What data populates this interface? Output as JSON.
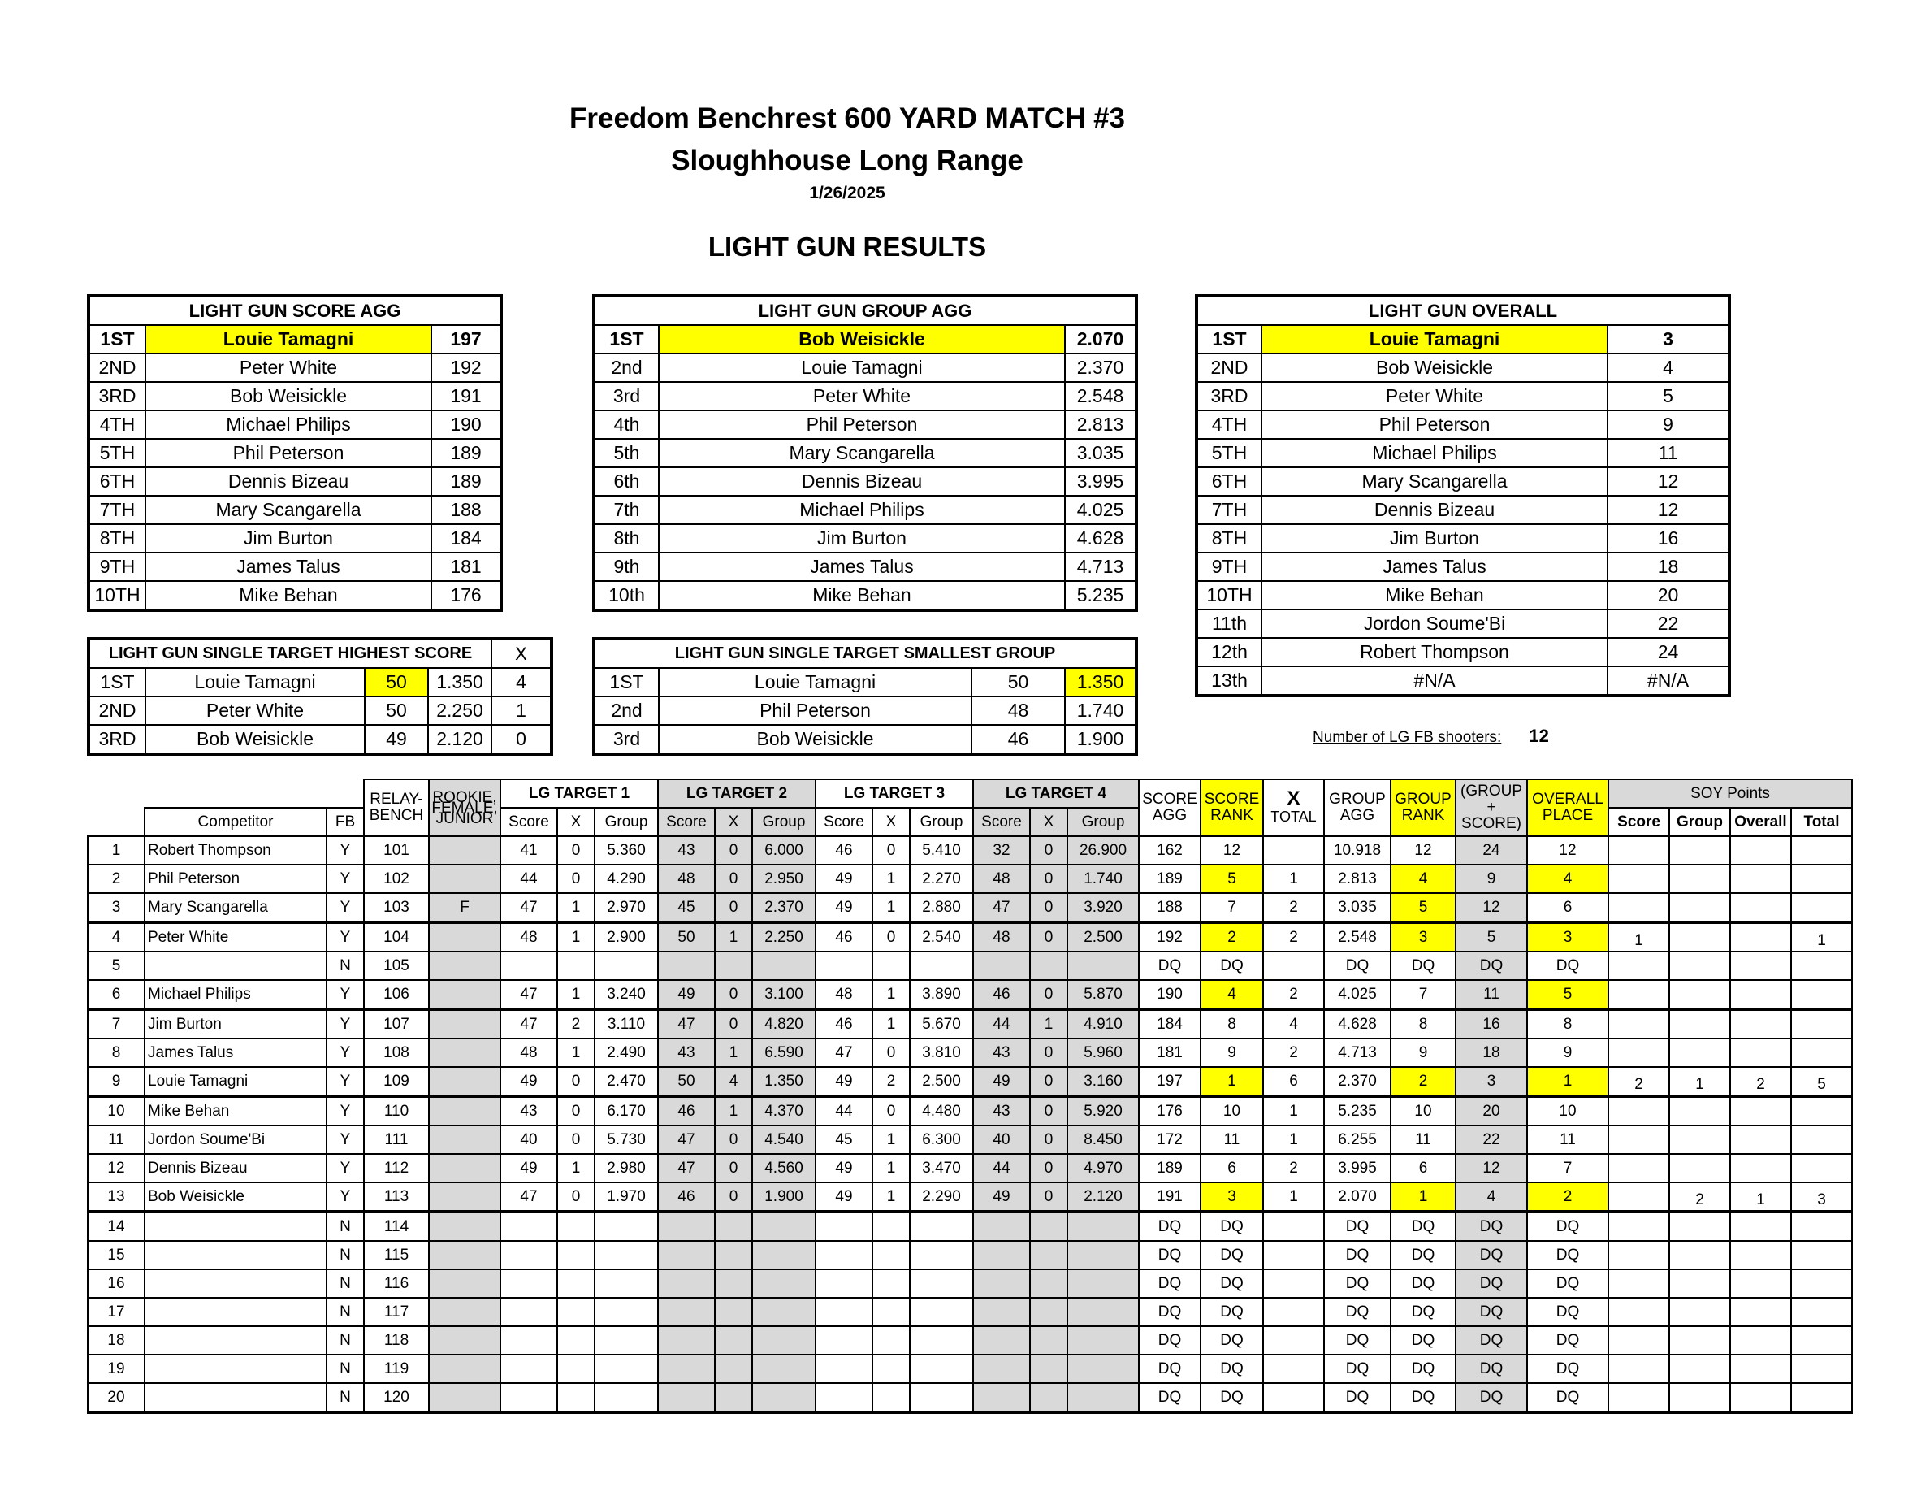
{
  "header": {
    "title": "Freedom Benchrest 600 YARD MATCH #3",
    "venue": "Sloughhouse Long Range",
    "date": "1/26/2025",
    "section": "LIGHT GUN RESULTS"
  },
  "score_agg": {
    "title": "LIGHT GUN SCORE AGG",
    "rows": [
      [
        "1ST",
        "Louie Tamagni",
        "197"
      ],
      [
        "2ND",
        "Peter White",
        "192"
      ],
      [
        "3RD",
        "Bob Weisickle",
        "191"
      ],
      [
        "4TH",
        "Michael Philips",
        "190"
      ],
      [
        "5TH",
        "Phil Peterson",
        "189"
      ],
      [
        "6TH",
        "Dennis Bizeau",
        "189"
      ],
      [
        "7TH",
        "Mary Scangarella",
        "188"
      ],
      [
        "8TH",
        "Jim Burton",
        "184"
      ],
      [
        "9TH",
        "James Talus",
        "181"
      ],
      [
        "10TH",
        "Mike Behan",
        "176"
      ]
    ]
  },
  "group_agg": {
    "title": "LIGHT GUN GROUP AGG",
    "rows": [
      [
        "1ST",
        "Bob Weisickle",
        "2.070"
      ],
      [
        "2nd",
        "Louie Tamagni",
        "2.370"
      ],
      [
        "3rd",
        "Peter White",
        "2.548"
      ],
      [
        "4th",
        "Phil Peterson",
        "2.813"
      ],
      [
        "5th",
        "Mary Scangarella",
        "3.035"
      ],
      [
        "6th",
        "Dennis Bizeau",
        "3.995"
      ],
      [
        "7th",
        "Michael Philips",
        "4.025"
      ],
      [
        "8th",
        "Jim Burton",
        "4.628"
      ],
      [
        "9th",
        "James Talus",
        "4.713"
      ],
      [
        "10th",
        "Mike Behan",
        "5.235"
      ]
    ]
  },
  "overall": {
    "title": "LIGHT GUN OVERALL",
    "rows": [
      [
        "1ST",
        "Louie Tamagni",
        "3"
      ],
      [
        "2ND",
        "Bob Weisickle",
        "4"
      ],
      [
        "3RD",
        "Peter White",
        "5"
      ],
      [
        "4TH",
        "Phil Peterson",
        "9"
      ],
      [
        "5TH",
        "Michael Philips",
        "11"
      ],
      [
        "6TH",
        "Mary Scangarella",
        "12"
      ],
      [
        "7TH",
        "Dennis Bizeau",
        "12"
      ],
      [
        "8TH",
        "Jim Burton",
        "16"
      ],
      [
        "9TH",
        "James Talus",
        "18"
      ],
      [
        "10TH",
        "Mike Behan",
        "20"
      ],
      [
        "11th",
        "Jordon Soume'Bi",
        "22"
      ],
      [
        "12th",
        "Robert Thompson",
        "24"
      ],
      [
        "13th",
        "#N/A",
        "#N/A"
      ]
    ]
  },
  "single_high": {
    "title": "LIGHT GUN SINGLE TARGET HIGHEST SCORE",
    "x_label": "X",
    "rows": [
      [
        "1ST",
        "Louie Tamagni",
        "50",
        "1.350",
        "4"
      ],
      [
        "2ND",
        "Peter White",
        "50",
        "2.250",
        "1"
      ],
      [
        "3RD",
        "Bob Weisickle",
        "49",
        "2.120",
        "0"
      ]
    ]
  },
  "single_small": {
    "title": "LIGHT GUN SINGLE TARGET SMALLEST GROUP",
    "rows": [
      [
        "1ST",
        "Louie Tamagni",
        "50",
        "1.350"
      ],
      [
        "2nd",
        "Phil Peterson",
        "48",
        "1.740"
      ],
      [
        "3rd",
        "Bob Weisickle",
        "46",
        "1.900"
      ]
    ]
  },
  "shooters": {
    "label": "Number of LG FB shooters:",
    "count": "12"
  },
  "main": {
    "headers": {
      "competitor": "Competitor",
      "fb": "FB",
      "relay": "RELAY-\nBENCH",
      "rookie": "ROOKIE,\nFEMALE,\nJUNIOR",
      "t1": "LG TARGET 1",
      "t2": "LG TARGET 2",
      "t3": "LG TARGET 3",
      "t4": "LG TARGET 4",
      "score": "Score",
      "x": "X",
      "group": "Group",
      "score_agg": "SCORE\nAGG",
      "score_rank": "SCORE\nRANK",
      "x_total_x": "X",
      "x_total": "TOTAL",
      "group_agg": "GROUP\nAGG",
      "group_rank": "GROUP\nRANK",
      "group_score": "(GROUP +\nSCORE)",
      "overall_place": "OVERALL\nPLACE",
      "soy": "SOY Points",
      "soy_score": "Score",
      "soy_group": "Group",
      "soy_overall": "Overall",
      "soy_total": "Total"
    },
    "rows": [
      [
        "1",
        "Robert Thompson",
        "Y",
        "101",
        "",
        "41",
        "0",
        "5.360",
        "43",
        "0",
        "6.000",
        "46",
        "0",
        "5.410",
        "32",
        "0",
        "26.900",
        "162",
        "12",
        "",
        "10.918",
        "12",
        "24",
        "12",
        "",
        "",
        "",
        ""
      ],
      [
        "2",
        "Phil Peterson",
        "Y",
        "102",
        "",
        "44",
        "0",
        "4.290",
        "48",
        "0",
        "2.950",
        "49",
        "1",
        "2.270",
        "48",
        "0",
        "1.740",
        "189",
        "5",
        "1",
        "2.813",
        "4",
        "9",
        "4",
        "",
        "",
        "",
        ""
      ],
      [
        "3",
        "Mary Scangarella",
        "Y",
        "103",
        "F",
        "47",
        "1",
        "2.970",
        "45",
        "0",
        "2.370",
        "49",
        "1",
        "2.880",
        "47",
        "0",
        "3.920",
        "188",
        "7",
        "2",
        "3.035",
        "5",
        "12",
        "6",
        "",
        "",
        "",
        ""
      ],
      [
        "4",
        "Peter White",
        "Y",
        "104",
        "",
        "48",
        "1",
        "2.900",
        "50",
        "1",
        "2.250",
        "46",
        "0",
        "2.540",
        "48",
        "0",
        "2.500",
        "192",
        "2",
        "2",
        "2.548",
        "3",
        "5",
        "3",
        "1",
        "",
        "",
        "1"
      ],
      [
        "5",
        "",
        "N",
        "105",
        "",
        "",
        "",
        "",
        "",
        "",
        "",
        "",
        "",
        "",
        "",
        "",
        "",
        "DQ",
        "DQ",
        "",
        "DQ",
        "DQ",
        "DQ",
        "DQ",
        "",
        "",
        "",
        ""
      ],
      [
        "6",
        "Michael Philips",
        "Y",
        "106",
        "",
        "47",
        "1",
        "3.240",
        "49",
        "0",
        "3.100",
        "48",
        "1",
        "3.890",
        "46",
        "0",
        "5.870",
        "190",
        "4",
        "2",
        "4.025",
        "7",
        "11",
        "5",
        "",
        "",
        "",
        ""
      ],
      [
        "7",
        "Jim Burton",
        "Y",
        "107",
        "",
        "47",
        "2",
        "3.110",
        "47",
        "0",
        "4.820",
        "46",
        "1",
        "5.670",
        "44",
        "1",
        "4.910",
        "184",
        "8",
        "4",
        "4.628",
        "8",
        "16",
        "8",
        "",
        "",
        "",
        ""
      ],
      [
        "8",
        "James Talus",
        "Y",
        "108",
        "",
        "48",
        "1",
        "2.490",
        "43",
        "1",
        "6.590",
        "47",
        "0",
        "3.810",
        "43",
        "0",
        "5.960",
        "181",
        "9",
        "2",
        "4.713",
        "9",
        "18",
        "9",
        "",
        "",
        "",
        ""
      ],
      [
        "9",
        "Louie Tamagni",
        "Y",
        "109",
        "",
        "49",
        "0",
        "2.470",
        "50",
        "4",
        "1.350",
        "49",
        "2",
        "2.500",
        "49",
        "0",
        "3.160",
        "197",
        "1",
        "6",
        "2.370",
        "2",
        "3",
        "1",
        "2",
        "1",
        "2",
        "5"
      ],
      [
        "10",
        "Mike Behan",
        "Y",
        "110",
        "",
        "43",
        "0",
        "6.170",
        "46",
        "1",
        "4.370",
        "44",
        "0",
        "4.480",
        "43",
        "0",
        "5.920",
        "176",
        "10",
        "1",
        "5.235",
        "10",
        "20",
        "10",
        "",
        "",
        "",
        ""
      ],
      [
        "11",
        "Jordon Soume'Bi",
        "Y",
        "111",
        "",
        "40",
        "0",
        "5.730",
        "47",
        "0",
        "4.540",
        "45",
        "1",
        "6.300",
        "40",
        "0",
        "8.450",
        "172",
        "11",
        "1",
        "6.255",
        "11",
        "22",
        "11",
        "",
        "",
        "",
        ""
      ],
      [
        "12",
        "Dennis Bizeau",
        "Y",
        "112",
        "",
        "49",
        "1",
        "2.980",
        "47",
        "0",
        "4.560",
        "49",
        "1",
        "3.470",
        "44",
        "0",
        "4.970",
        "189",
        "6",
        "2",
        "3.995",
        "6",
        "12",
        "7",
        "",
        "",
        "",
        ""
      ],
      [
        "13",
        "Bob Weisickle",
        "Y",
        "113",
        "",
        "47",
        "0",
        "1.970",
        "46",
        "0",
        "1.900",
        "49",
        "1",
        "2.290",
        "49",
        "0",
        "2.120",
        "191",
        "3",
        "1",
        "2.070",
        "1",
        "4",
        "2",
        "",
        "2",
        "1",
        "3"
      ],
      [
        "14",
        "",
        "N",
        "114",
        "",
        "",
        "",
        "",
        "",
        "",
        "",
        "",
        "",
        "",
        "",
        "",
        "",
        "DQ",
        "DQ",
        "",
        "DQ",
        "DQ",
        "DQ",
        "DQ",
        "",
        "",
        "",
        ""
      ],
      [
        "15",
        "",
        "N",
        "115",
        "",
        "",
        "",
        "",
        "",
        "",
        "",
        "",
        "",
        "",
        "",
        "",
        "",
        "DQ",
        "DQ",
        "",
        "DQ",
        "DQ",
        "DQ",
        "DQ",
        "",
        "",
        "",
        ""
      ],
      [
        "16",
        "",
        "N",
        "116",
        "",
        "",
        "",
        "",
        "",
        "",
        "",
        "",
        "",
        "",
        "",
        "",
        "",
        "DQ",
        "DQ",
        "",
        "DQ",
        "DQ",
        "DQ",
        "DQ",
        "",
        "",
        "",
        ""
      ],
      [
        "17",
        "",
        "N",
        "117",
        "",
        "",
        "",
        "",
        "",
        "",
        "",
        "",
        "",
        "",
        "",
        "",
        "",
        "DQ",
        "DQ",
        "",
        "DQ",
        "DQ",
        "DQ",
        "DQ",
        "",
        "",
        "",
        ""
      ],
      [
        "18",
        "",
        "N",
        "118",
        "",
        "",
        "",
        "",
        "",
        "",
        "",
        "",
        "",
        "",
        "",
        "",
        "",
        "DQ",
        "DQ",
        "",
        "DQ",
        "DQ",
        "DQ",
        "DQ",
        "",
        "",
        "",
        ""
      ],
      [
        "19",
        "",
        "N",
        "119",
        "",
        "",
        "",
        "",
        "",
        "",
        "",
        "",
        "",
        "",
        "",
        "",
        "",
        "DQ",
        "DQ",
        "",
        "DQ",
        "DQ",
        "DQ",
        "DQ",
        "",
        "",
        "",
        ""
      ],
      [
        "20",
        "",
        "N",
        "120",
        "",
        "",
        "",
        "",
        "",
        "",
        "",
        "",
        "",
        "",
        "",
        "",
        "",
        "DQ",
        "DQ",
        "",
        "DQ",
        "DQ",
        "DQ",
        "DQ",
        "",
        "",
        "",
        ""
      ]
    ],
    "highlight": {
      "score_rank": [
        "2",
        "4",
        "6",
        "9",
        "13"
      ],
      "group_rank": [
        "2",
        "3",
        "4",
        "9",
        "13"
      ],
      "overall_place": [
        "2",
        "4",
        "6",
        "9",
        "13"
      ]
    }
  },
  "colors": {
    "highlight": "#ffff00",
    "shade": "#d9d9d9"
  }
}
